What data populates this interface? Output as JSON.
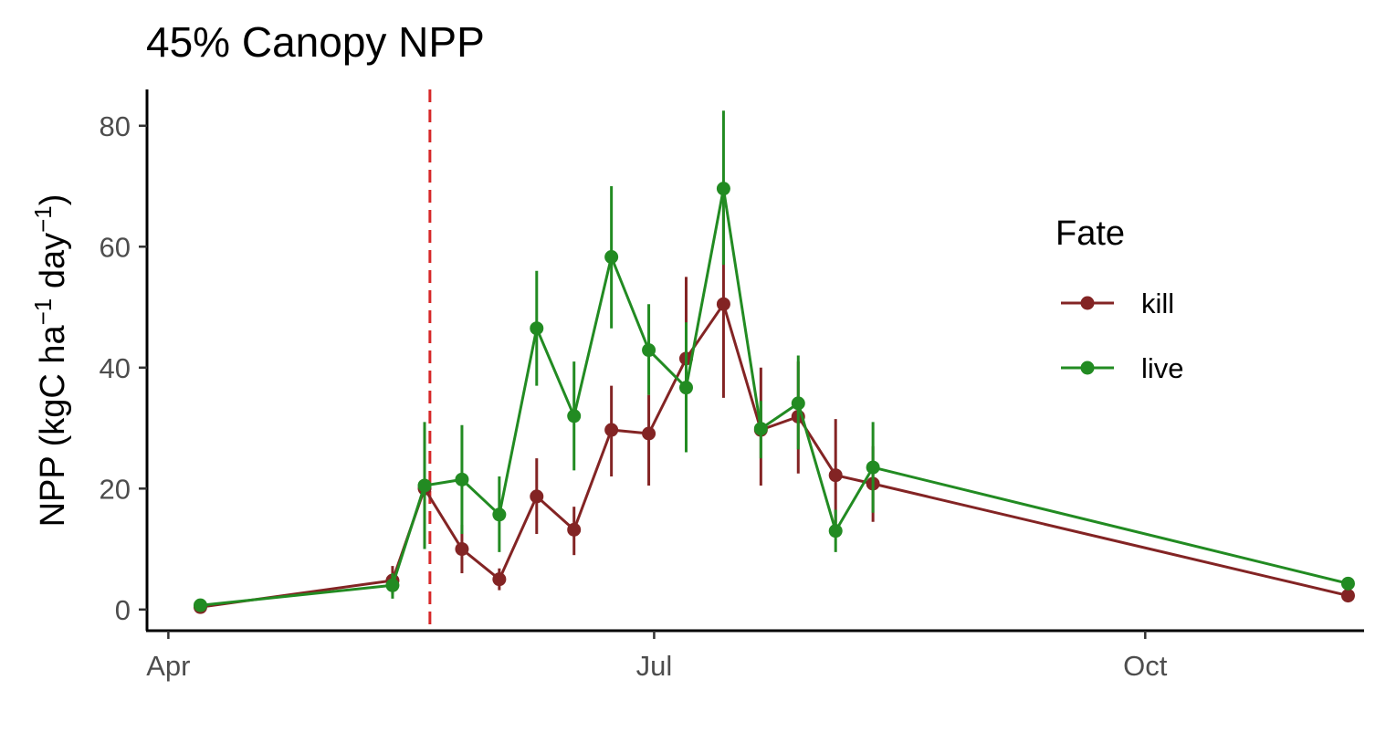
{
  "chart_data": {
    "type": "line",
    "title": "45% Canopy NPP",
    "ylabel": {
      "prefix": "NPP (kgC ha",
      "sup1": "−1",
      "middle": " day",
      "sup2": "−1",
      "suffix": ")"
    },
    "xlabel": "",
    "x_axis": {
      "type": "date",
      "range": [
        "2015-03-28",
        "2015-11-11"
      ],
      "ticks": [
        {
          "date": "2015-04-01",
          "label": "Apr"
        },
        {
          "date": "2015-07-01",
          "label": "Jul"
        },
        {
          "date": "2015-10-01",
          "label": "Oct"
        }
      ]
    },
    "y_axis": {
      "range": [
        -3.5,
        86
      ],
      "ticks": [
        0,
        20,
        40,
        60,
        80
      ]
    },
    "reference_line": {
      "date": "2015-05-20",
      "style": "dashed",
      "color": "#d62728"
    },
    "legend": {
      "title": "Fate",
      "position": "right"
    },
    "series": [
      {
        "name": "kill",
        "color": "#832424",
        "points": [
          {
            "x": "2015-04-07",
            "y": 0.4,
            "lo": 0.0,
            "hi": 0.8
          },
          {
            "x": "2015-05-13",
            "y": 4.8,
            "lo": 2.5,
            "hi": 7.2
          },
          {
            "x": "2015-05-19",
            "y": 20.0,
            "lo": 10.0,
            "hi": 30.0
          },
          {
            "x": "2015-05-26",
            "y": 10.0,
            "lo": 6.0,
            "hi": 14.0
          },
          {
            "x": "2015-06-02",
            "y": 5.0,
            "lo": 3.2,
            "hi": 6.8
          },
          {
            "x": "2015-06-09",
            "y": 18.7,
            "lo": 12.5,
            "hi": 25.0
          },
          {
            "x": "2015-06-16",
            "y": 13.2,
            "lo": 9.0,
            "hi": 17.0
          },
          {
            "x": "2015-06-23",
            "y": 29.7,
            "lo": 22.0,
            "hi": 37.0
          },
          {
            "x": "2015-06-30",
            "y": 29.1,
            "lo": 20.5,
            "hi": 35.5
          },
          {
            "x": "2015-07-07",
            "y": 41.5,
            "lo": 30.0,
            "hi": 55.0
          },
          {
            "x": "2015-07-14",
            "y": 50.5,
            "lo": 35.0,
            "hi": 66.0
          },
          {
            "x": "2015-07-21",
            "y": 29.7,
            "lo": 20.5,
            "hi": 40.0
          },
          {
            "x": "2015-07-28",
            "y": 31.9,
            "lo": 22.5,
            "hi": 41.0
          },
          {
            "x": "2015-08-04",
            "y": 22.2,
            "lo": 13.0,
            "hi": 31.5
          },
          {
            "x": "2015-08-11",
            "y": 20.8,
            "lo": 14.5,
            "hi": 27.0
          },
          {
            "x": "2015-11-08",
            "y": 2.3,
            "lo": 1.8,
            "hi": 2.8
          }
        ]
      },
      {
        "name": "live",
        "color": "#228b22",
        "points": [
          {
            "x": "2015-04-07",
            "y": 0.7,
            "lo": 0.3,
            "hi": 1.1
          },
          {
            "x": "2015-05-13",
            "y": 4.0,
            "lo": 1.8,
            "hi": 6.0
          },
          {
            "x": "2015-05-19",
            "y": 20.5,
            "lo": 10.0,
            "hi": 31.0
          },
          {
            "x": "2015-05-26",
            "y": 21.5,
            "lo": 12.5,
            "hi": 30.5
          },
          {
            "x": "2015-06-02",
            "y": 15.7,
            "lo": 9.5,
            "hi": 22.0
          },
          {
            "x": "2015-06-09",
            "y": 46.5,
            "lo": 37.0,
            "hi": 56.0
          },
          {
            "x": "2015-06-16",
            "y": 32.0,
            "lo": 23.0,
            "hi": 41.0
          },
          {
            "x": "2015-06-23",
            "y": 58.3,
            "lo": 46.5,
            "hi": 70.0
          },
          {
            "x": "2015-06-30",
            "y": 42.9,
            "lo": 35.5,
            "hi": 50.5
          },
          {
            "x": "2015-07-07",
            "y": 36.7,
            "lo": 26.0,
            "hi": 47.5
          },
          {
            "x": "2015-07-14",
            "y": 69.6,
            "lo": 57.0,
            "hi": 82.5
          },
          {
            "x": "2015-07-21",
            "y": 29.9,
            "lo": 25.0,
            "hi": 34.5
          },
          {
            "x": "2015-07-28",
            "y": 34.1,
            "lo": 26.5,
            "hi": 42.0
          },
          {
            "x": "2015-08-04",
            "y": 13.0,
            "lo": 9.5,
            "hi": 16.5
          },
          {
            "x": "2015-08-11",
            "y": 23.5,
            "lo": 16.0,
            "hi": 31.0
          },
          {
            "x": "2015-11-08",
            "y": 4.3,
            "lo": 3.5,
            "hi": 5.0
          }
        ]
      }
    ]
  }
}
